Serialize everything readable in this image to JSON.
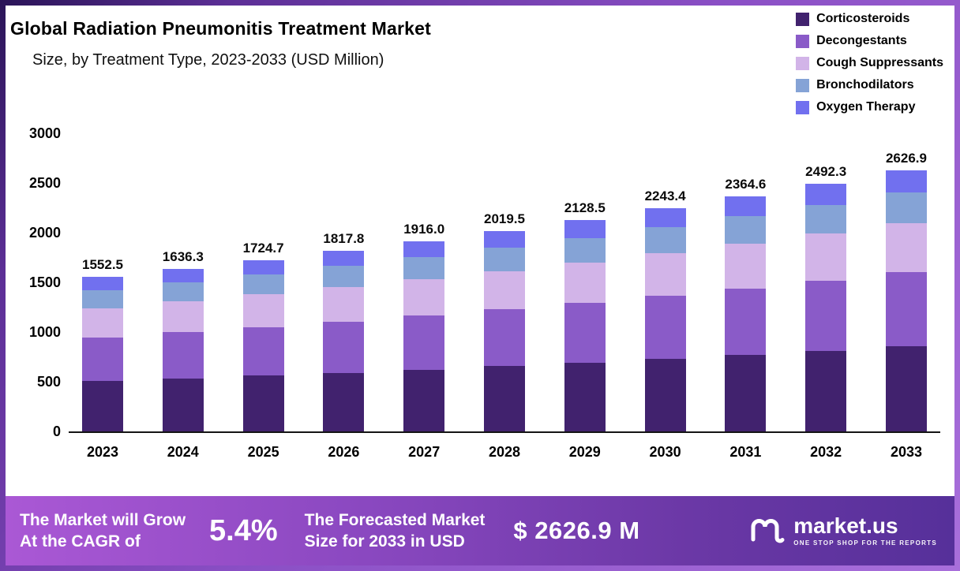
{
  "page": {
    "title": "Global Radiation Pneumonitis Treatment Market",
    "subtitle": "Size, by Treatment Type, 2023-2033 (USD Million)"
  },
  "chart_data": {
    "type": "bar",
    "stacked": true,
    "title": "Global Radiation Pneumonitis Treatment Market Size, by Treatment Type, 2023-2033 (USD Million)",
    "categories": [
      "2023",
      "2024",
      "2025",
      "2026",
      "2027",
      "2028",
      "2029",
      "2030",
      "2031",
      "2032",
      "2033"
    ],
    "totals": [
      1552.5,
      1636.3,
      1724.7,
      1817.8,
      1916.0,
      2019.5,
      2128.5,
      2243.4,
      2364.6,
      2492.3,
      2626.9
    ],
    "series": [
      {
        "name": "Corticosteroids",
        "color": "#41226e",
        "values": [
          504.6,
          531.8,
          560.5,
          590.8,
          622.7,
          656.3,
          691.8,
          729.1,
          768.5,
          810.0,
          853.7
        ]
      },
      {
        "name": "Decongestants",
        "color": "#8a5bc8",
        "values": [
          440.9,
          464.7,
          489.8,
          516.3,
          544.1,
          573.5,
          604.5,
          637.1,
          671.5,
          707.8,
          746.0
        ]
      },
      {
        "name": "Cough Suppressants",
        "color": "#d2b4e8",
        "values": [
          295.0,
          310.9,
          327.7,
          345.4,
          364.0,
          383.7,
          404.4,
          426.2,
          449.3,
          473.5,
          499.1
        ]
      },
      {
        "name": "Bronchodilators",
        "color": "#85a3d6",
        "values": [
          180.1,
          189.8,
          200.1,
          210.9,
          222.3,
          234.3,
          246.9,
          260.2,
          274.3,
          289.1,
          304.7
        ]
      },
      {
        "name": "Oxygen Therapy",
        "color": "#7170ef",
        "values": [
          132.0,
          139.1,
          146.6,
          154.5,
          162.9,
          171.7,
          180.9,
          190.7,
          201.0,
          211.8,
          223.3
        ]
      }
    ],
    "ylim": [
      0,
      3000
    ],
    "yticks": [
      0,
      500,
      1000,
      1500,
      2000,
      2500,
      3000
    ],
    "grid": false,
    "legend_position": "top-right",
    "xlabel": "",
    "ylabel": ""
  },
  "footer": {
    "grow_line1": "The Market will Grow",
    "grow_line2": "At the CAGR of",
    "cagr": "5.4%",
    "forecast_line1": "The Forecasted Market",
    "forecast_line2": "Size for 2033 in USD",
    "forecast_value": "$ 2626.9 M",
    "brand": "market.us",
    "brand_tagline": "ONE STOP SHOP FOR THE REPORTS"
  }
}
